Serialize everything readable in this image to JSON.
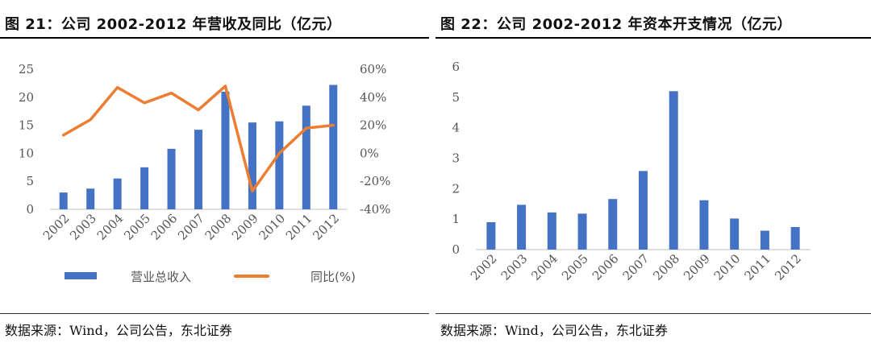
{
  "left": {
    "title": "图 21：公司 2002-2012 年营收及同比（亿元）",
    "source": "数据来源：Wind，公司公告，东北证券",
    "chart_data": {
      "type": "bar",
      "categories": [
        "2002",
        "2003",
        "2004",
        "2005",
        "2006",
        "2007",
        "2008",
        "2009",
        "2010",
        "2011",
        "2012"
      ],
      "series": [
        {
          "name": "营业总收入",
          "type": "bar",
          "axis": "left",
          "color": "#4472C4",
          "values": [
            3.0,
            3.7,
            5.5,
            7.5,
            10.8,
            14.2,
            21.0,
            15.5,
            15.7,
            18.5,
            22.2
          ]
        },
        {
          "name": "同比(%)",
          "type": "line",
          "axis": "right",
          "color": "#ED7D31",
          "values": [
            13,
            24,
            47,
            36,
            43,
            31,
            48,
            -27,
            0,
            18,
            20
          ]
        }
      ],
      "ylim": [
        0,
        25
      ],
      "yticks": [
        0,
        5,
        10,
        15,
        20,
        25
      ],
      "y2lim": [
        -40,
        60
      ],
      "y2ticks": [
        "-40%",
        "-20%",
        "0%",
        "20%",
        "40%",
        "60%"
      ],
      "y2tick_values": [
        -40,
        -20,
        0,
        20,
        40,
        60
      ],
      "legend": [
        "营业总收入",
        "同比(%)"
      ],
      "legend_position": "bottom",
      "grid": false
    }
  },
  "right": {
    "title": "图 22：公司 2002-2012 年资本开支情况（亿元）",
    "source": "数据来源：Wind，公司公告，东北证券",
    "chart_data": {
      "type": "bar",
      "categories": [
        "2002",
        "2003",
        "2004",
        "2005",
        "2006",
        "2007",
        "2008",
        "2009",
        "2010",
        "2011",
        "2012"
      ],
      "series": [
        {
          "type": "bar",
          "color": "#4472C4",
          "values": [
            0.9,
            1.47,
            1.22,
            1.18,
            1.66,
            2.58,
            5.2,
            1.62,
            1.02,
            0.62,
            0.74
          ]
        }
      ],
      "ylim": [
        0,
        6
      ],
      "yticks": [
        0,
        1,
        2,
        3,
        4,
        5,
        6
      ],
      "grid": false
    }
  }
}
